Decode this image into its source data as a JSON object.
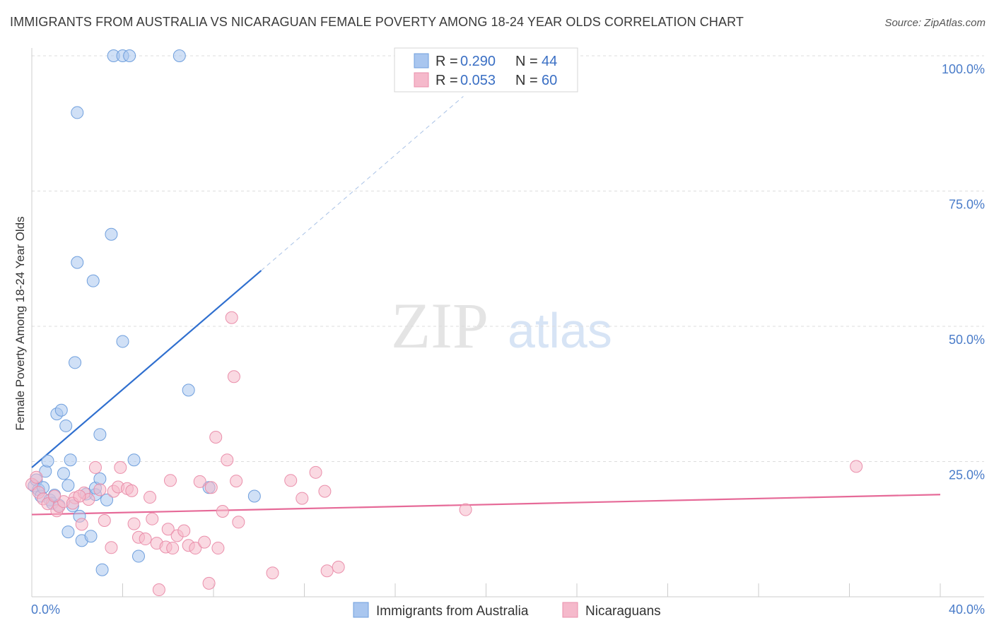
{
  "title": "IMMIGRANTS FROM AUSTRALIA VS NICARAGUAN FEMALE POVERTY AMONG 18-24 YEAR OLDS CORRELATION CHART",
  "source": "Source: ZipAtlas.com",
  "watermark": {
    "zip": "ZIP",
    "atlas": "atlas"
  },
  "colors": {
    "blue_fill": "#a9c6ef",
    "blue_stroke": "#6f9fdd",
    "blue_line": "#2f6fcf",
    "pink_fill": "#f5b9cb",
    "pink_stroke": "#ea8fab",
    "pink_line": "#e66a98",
    "grid": "#dddddd",
    "tick_text": "#4a7cc9"
  },
  "legend": {
    "r_label": "R = ",
    "n_label": "N = ",
    "series": [
      {
        "r": "0.290",
        "n": "44"
      },
      {
        "r": "0.053",
        "n": "60"
      }
    ]
  },
  "chart_data": {
    "type": "scatter",
    "title": "IMMIGRANTS FROM AUSTRALIA VS NICARAGUAN FEMALE POVERTY AMONG 18-24 YEAR OLDS CORRELATION CHART",
    "xlabel": "",
    "ylabel": "Female Poverty Among 18-24 Year Olds",
    "xlim": [
      0,
      40
    ],
    "ylim": [
      0,
      100
    ],
    "x_tick_labels": [
      "0.0%",
      "40.0%"
    ],
    "y_ticks": [
      25,
      50,
      75,
      100
    ],
    "y_tick_labels": [
      "25.0%",
      "50.0%",
      "75.0%",
      "100.0%"
    ],
    "series": [
      {
        "name": "Immigrants from Australia",
        "color": "blue",
        "trend": {
          "x0": 0,
          "y0": 23.9,
          "x1": 10.1,
          "y1": 60.3,
          "dashed_to_x": 19.0,
          "dashed_to_y": 92.5
        },
        "points": [
          [
            0.1,
            20.5
          ],
          [
            0.2,
            21.6
          ],
          [
            0.3,
            19.8
          ],
          [
            0.4,
            18.6
          ],
          [
            0.5,
            20.2
          ],
          [
            0.6,
            23.2
          ],
          [
            0.7,
            25.1
          ],
          [
            0.8,
            17.9
          ],
          [
            0.9,
            17.3
          ],
          [
            1.0,
            18.8
          ],
          [
            1.1,
            33.8
          ],
          [
            1.2,
            16.9
          ],
          [
            1.3,
            34.5
          ],
          [
            1.4,
            22.8
          ],
          [
            1.5,
            31.6
          ],
          [
            1.6,
            20.6
          ],
          [
            1.6,
            12.0
          ],
          [
            1.7,
            25.3
          ],
          [
            1.8,
            16.8
          ],
          [
            1.9,
            43.3
          ],
          [
            2.0,
            61.8
          ],
          [
            2.0,
            89.5
          ],
          [
            2.1,
            14.9
          ],
          [
            2.2,
            10.4
          ],
          [
            2.4,
            19.0
          ],
          [
            2.6,
            11.2
          ],
          [
            2.7,
            58.4
          ],
          [
            2.8,
            18.9
          ],
          [
            2.8,
            20.1
          ],
          [
            3.0,
            21.8
          ],
          [
            3.0,
            30.0
          ],
          [
            3.1,
            5.0
          ],
          [
            3.3,
            17.9
          ],
          [
            3.5,
            67.0
          ],
          [
            3.6,
            100.0
          ],
          [
            4.0,
            100.0
          ],
          [
            4.0,
            47.2
          ],
          [
            4.3,
            100.0
          ],
          [
            4.5,
            25.3
          ],
          [
            4.7,
            7.5
          ],
          [
            6.9,
            38.2
          ],
          [
            6.5,
            100.0
          ],
          [
            7.8,
            20.2
          ],
          [
            9.8,
            18.6
          ]
        ]
      },
      {
        "name": "Nicaraguans",
        "color": "pink",
        "trend": {
          "x0": 0,
          "y0": 15.2,
          "x1": 40,
          "y1": 18.9
        },
        "points": [
          [
            0.0,
            20.8
          ],
          [
            0.3,
            19.3
          ],
          [
            0.5,
            18.1
          ],
          [
            0.7,
            17.2
          ],
          [
            1.1,
            15.9
          ],
          [
            1.2,
            16.7
          ],
          [
            1.4,
            17.6
          ],
          [
            1.9,
            18.3
          ],
          [
            2.2,
            13.4
          ],
          [
            2.3,
            19.2
          ],
          [
            2.5,
            18.0
          ],
          [
            2.8,
            23.9
          ],
          [
            3.0,
            19.8
          ],
          [
            3.2,
            14.1
          ],
          [
            3.5,
            9.1
          ],
          [
            3.6,
            19.5
          ],
          [
            3.8,
            20.3
          ],
          [
            3.9,
            23.9
          ],
          [
            4.2,
            20.0
          ],
          [
            4.4,
            19.6
          ],
          [
            4.5,
            13.5
          ],
          [
            4.7,
            11.0
          ],
          [
            5.0,
            10.7
          ],
          [
            5.2,
            18.4
          ],
          [
            5.3,
            14.4
          ],
          [
            5.5,
            9.9
          ],
          [
            5.6,
            1.3
          ],
          [
            6.0,
            12.5
          ],
          [
            5.9,
            9.2
          ],
          [
            6.2,
            9.0
          ],
          [
            6.4,
            11.3
          ],
          [
            6.7,
            12.2
          ],
          [
            6.9,
            9.5
          ],
          [
            7.2,
            9.0
          ],
          [
            7.4,
            21.3
          ],
          [
            6.1,
            21.5
          ],
          [
            7.6,
            10.1
          ],
          [
            7.8,
            2.5
          ],
          [
            7.9,
            20.2
          ],
          [
            8.1,
            29.5
          ],
          [
            8.2,
            9.0
          ],
          [
            8.4,
            15.8
          ],
          [
            8.6,
            25.3
          ],
          [
            8.8,
            51.6
          ],
          [
            8.9,
            40.7
          ],
          [
            9.0,
            21.4
          ],
          [
            9.1,
            13.8
          ],
          [
            10.6,
            4.4
          ],
          [
            11.4,
            21.5
          ],
          [
            11.9,
            18.2
          ],
          [
            12.5,
            23.0
          ],
          [
            12.9,
            19.5
          ],
          [
            13.0,
            4.8
          ],
          [
            13.5,
            5.5
          ],
          [
            19.1,
            16.1
          ],
          [
            36.3,
            24.1
          ],
          [
            1.8,
            17.3
          ],
          [
            2.1,
            18.6
          ],
          [
            1.0,
            18.6
          ],
          [
            0.2,
            22.1
          ]
        ]
      }
    ]
  },
  "bottom_legend": [
    "Immigrants from Australia",
    "Nicaraguans"
  ]
}
